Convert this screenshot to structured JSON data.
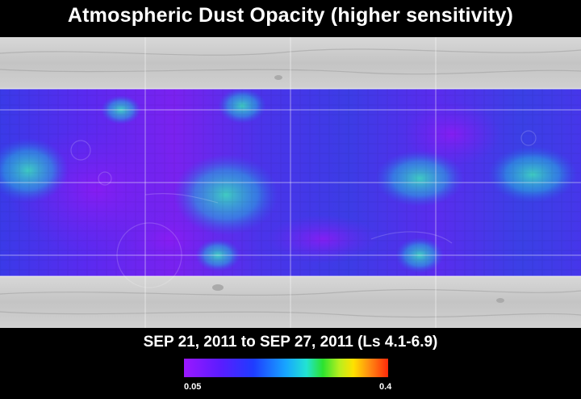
{
  "title": "Atmospheric Dust Opacity (higher sensitivity)",
  "date_range": "SEP 21, 2011 to SEP 27, 2011 (Ls 4.1-6.9)",
  "colorbar": {
    "min_label": "0.05",
    "max_label": "0.4",
    "colors": [
      "#9b18ff",
      "#5a1cff",
      "#1f3cff",
      "#17a6ff",
      "#22e3d3",
      "#2be32f",
      "#b6ef1f",
      "#ffe100",
      "#ff8a12",
      "#ff2a0a"
    ]
  },
  "map": {
    "base_color": "#c9c9c9",
    "grid_color": "#ffffff",
    "dust_colors": {
      "low": "#7a22f0",
      "mid": "#2f38e8",
      "high": "#33c8c8"
    }
  }
}
